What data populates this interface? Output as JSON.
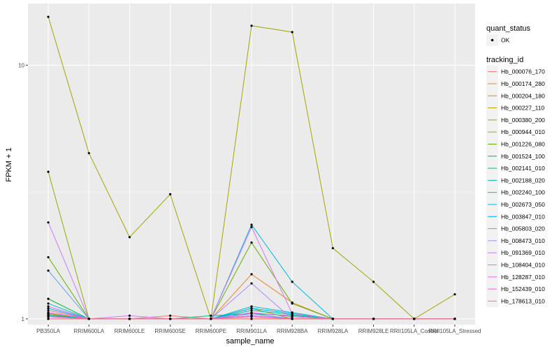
{
  "chart_data": {
    "type": "line",
    "xlabel": "sample_name",
    "ylabel": "FPKM + 1",
    "y_scale": "log10",
    "ylim": [
      0.95,
      17.5
    ],
    "y_ticks": [
      1,
      10
    ],
    "y_tick_labels": [
      "1",
      "10"
    ],
    "grid": true,
    "legend_position": "right",
    "categories": [
      "PB350LA",
      "RRIM600LA",
      "RRIM600LE",
      "RRIM600SE",
      "RRIM600PE",
      "RRIM901LA",
      "RRIM928BA",
      "RRIM928LA",
      "RRIM928LE",
      "RRII105LA_Control",
      "RRII105LA_Stressed"
    ],
    "point_legend": {
      "title": "quant_status",
      "entries": [
        "OK"
      ]
    },
    "legend_title": "tracking_id",
    "series": [
      {
        "name": "Hb_000076_170",
        "color": "#F8766D",
        "values": [
          1.08,
          1.0,
          1.0,
          1.03,
          1.0,
          1.03,
          1.0,
          1.0,
          1.0,
          1.0,
          1.0
        ]
      },
      {
        "name": "Hb_000174_280",
        "color": "#E88526",
        "values": [
          1.03,
          1.0,
          1.0,
          1.0,
          1.0,
          1.5,
          1.16,
          1.0,
          1.0,
          1.0,
          1.0
        ]
      },
      {
        "name": "Hb_000204_180",
        "color": "#D39200",
        "values": [
          1.05,
          1.0,
          1.0,
          1.0,
          1.0,
          1.0,
          1.0,
          1.0,
          1.0,
          1.0,
          1.0
        ]
      },
      {
        "name": "Hb_000227_110",
        "color": "#B79F00",
        "values": [
          1.05,
          1.0,
          1.0,
          1.0,
          1.0,
          1.03,
          1.0,
          1.0,
          1.0,
          1.0,
          1.0
        ]
      },
      {
        "name": "Hb_000380_200",
        "color": "#93AA00",
        "values": [
          3.8,
          1.0,
          1.0,
          1.0,
          1.0,
          1.1,
          1.0,
          1.0,
          1.0,
          1.0,
          1.0
        ]
      },
      {
        "name": "Hb_000944_010",
        "color": "#A3A500",
        "values": [
          15.5,
          4.5,
          2.1,
          3.1,
          1.0,
          14.3,
          13.5,
          1.9,
          1.4,
          1.0,
          1.25
        ]
      },
      {
        "name": "Hb_001226_080",
        "color": "#5EB300",
        "values": [
          1.75,
          1.0,
          1.0,
          1.0,
          1.0,
          2.0,
          1.15,
          1.0,
          1.0,
          1.0,
          1.0
        ]
      },
      {
        "name": "Hb_001524_100",
        "color": "#00BA38",
        "values": [
          1.2,
          1.0,
          1.0,
          1.0,
          1.0,
          1.05,
          1.0,
          1.0,
          1.0,
          1.0,
          1.0
        ]
      },
      {
        "name": "Hb_002141_010",
        "color": "#00BF74",
        "values": [
          1.04,
          1.0,
          1.0,
          1.0,
          1.03,
          1.05,
          1.03,
          1.0,
          1.0,
          1.0,
          1.0
        ]
      },
      {
        "name": "Hb_002188_020",
        "color": "#00C19F",
        "values": [
          1.02,
          1.0,
          1.0,
          1.0,
          1.0,
          1.08,
          1.04,
          1.0,
          1.0,
          1.0,
          1.0
        ]
      },
      {
        "name": "Hb_002240_100",
        "color": "#00BFC4",
        "values": [
          1.15,
          1.0,
          1.0,
          1.0,
          1.0,
          1.12,
          1.06,
          1.0,
          1.0,
          1.0,
          1.0
        ]
      },
      {
        "name": "Hb_002673_050",
        "color": "#00B9E3",
        "values": [
          1.03,
          1.0,
          1.0,
          1.0,
          1.0,
          2.35,
          1.4,
          1.0,
          1.0,
          1.0,
          1.0
        ]
      },
      {
        "name": "Hb_003847_010",
        "color": "#00ADFA",
        "values": [
          1.1,
          1.0,
          1.0,
          1.0,
          1.0,
          1.1,
          1.05,
          1.0,
          1.0,
          1.0,
          1.0
        ]
      },
      {
        "name": "Hb_005803_020",
        "color": "#619CFF",
        "values": [
          1.55,
          1.0,
          1.0,
          1.0,
          1.0,
          1.05,
          1.0,
          1.0,
          1.0,
          1.0,
          1.0
        ]
      },
      {
        "name": "Hb_008473_010",
        "color": "#AE87FF",
        "values": [
          1.0,
          1.0,
          1.0,
          1.0,
          1.0,
          1.38,
          1.0,
          1.0,
          1.0,
          1.0,
          1.0
        ]
      },
      {
        "name": "Hb_091369_010",
        "color": "#C77CFF",
        "values": [
          2.4,
          1.0,
          1.03,
          1.0,
          1.0,
          1.03,
          1.0,
          1.0,
          1.0,
          1.0,
          1.0
        ]
      },
      {
        "name": "Hb_108404_010",
        "color": "#DB72FB",
        "values": [
          1.12,
          1.0,
          1.0,
          1.0,
          1.0,
          2.3,
          1.05,
          1.0,
          1.0,
          1.0,
          1.0
        ]
      },
      {
        "name": "Hb_128287_010",
        "color": "#ED68ED",
        "values": [
          1.06,
          1.0,
          1.0,
          1.0,
          1.0,
          1.06,
          1.02,
          1.0,
          1.0,
          1.0,
          1.0
        ]
      },
      {
        "name": "Hb_152439_010",
        "color": "#FF61C3",
        "values": [
          1.02,
          1.0,
          1.0,
          1.0,
          1.0,
          1.02,
          1.0,
          1.0,
          1.0,
          1.0,
          1.0
        ]
      },
      {
        "name": "Hb_178613_010",
        "color": "#F8766D",
        "values": [
          1.0,
          1.0,
          1.0,
          1.0,
          1.0,
          1.0,
          1.0,
          1.0,
          1.0,
          1.0,
          1.0
        ]
      }
    ]
  }
}
